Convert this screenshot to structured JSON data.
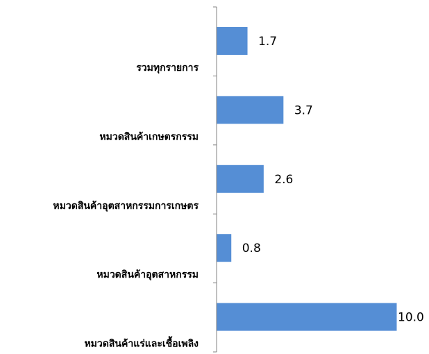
{
  "chart_data": {
    "type": "bar",
    "orientation": "horizontal",
    "categories": [
      "รวมทุกรายการ",
      "หมวดสินค้าเกษตรกรรม",
      "หมวดสินค้าอุตสาหกรรมการเกษตร",
      "หมวดสินค้าอุตสาหกรรม",
      "หมวดสินค้าแร่และเชื้อเพลิง"
    ],
    "values": [
      1.7,
      3.7,
      2.6,
      0.8,
      10.0
    ],
    "value_labels": [
      "1.7",
      "3.7",
      "2.6",
      "0.8",
      "10.0"
    ],
    "bar_color": "#558ED5",
    "xlim": [
      0,
      10.0
    ],
    "grid": false,
    "legend": "none",
    "title": "",
    "xlabel": "",
    "ylabel": ""
  }
}
